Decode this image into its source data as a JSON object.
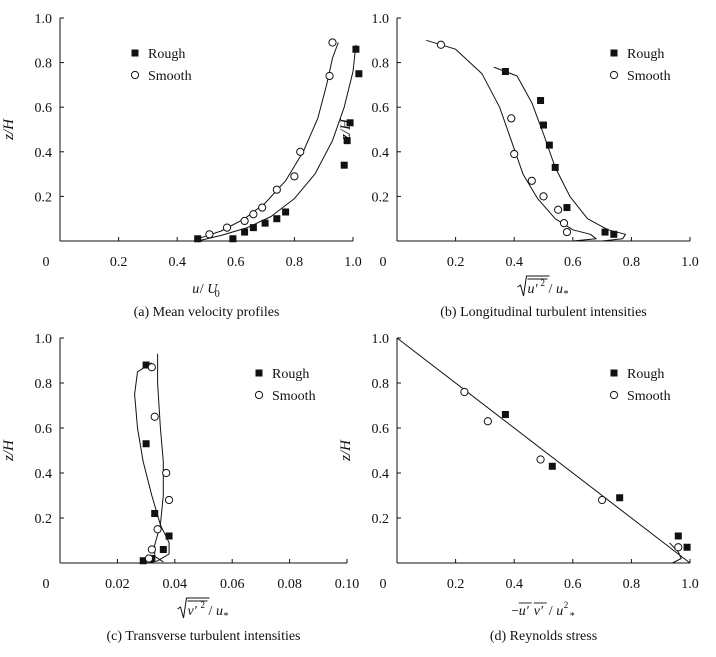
{
  "chart_data": [
    {
      "type": "scatter",
      "caption": "(a) Mean velocity profiles",
      "xlim": [
        0,
        1.0
      ],
      "ylim": [
        0,
        1.0
      ],
      "xticks": [
        {
          "v": 0,
          "t": "0"
        },
        {
          "v": 0.2,
          "t": "0.2"
        },
        {
          "v": 0.4,
          "t": "0.4"
        },
        {
          "v": 0.6,
          "t": "0.6"
        },
        {
          "v": 0.8,
          "t": "0.8"
        },
        {
          "v": 1.0,
          "t": "1.0"
        }
      ],
      "yticks": [
        {
          "v": 0.2,
          "t": "0.2"
        },
        {
          "v": 0.4,
          "t": "0.4"
        },
        {
          "v": 0.6,
          "t": "0.6"
        },
        {
          "v": 0.8,
          "t": "0.8"
        },
        {
          "v": 1.0,
          "t": "1.0"
        }
      ],
      "xlabel_parts": [
        {
          "text": "u",
          "italic": true
        },
        {
          "text": "/",
          "italic": false
        },
        {
          "text": "U",
          "italic": true
        },
        {
          "text": "0",
          "italic": false,
          "sub": true
        }
      ],
      "ylabel": "z/H",
      "legend": {
        "position": "top-left",
        "entries": [
          "Rough",
          "Smooth"
        ]
      },
      "series": [
        {
          "name": "Rough",
          "marker": "square",
          "points": [
            [
              0.47,
              0.01
            ],
            [
              0.59,
              0.01
            ],
            [
              0.63,
              0.04
            ],
            [
              0.66,
              0.06
            ],
            [
              0.7,
              0.08
            ],
            [
              0.74,
              0.1
            ],
            [
              0.77,
              0.13
            ],
            [
              0.97,
              0.34
            ],
            [
              0.98,
              0.45
            ],
            [
              0.99,
              0.53
            ],
            [
              1.01,
              0.86
            ],
            [
              1.02,
              0.75
            ]
          ]
        },
        {
          "name": "Smooth",
          "marker": "circle",
          "points": [
            [
              0.51,
              0.03
            ],
            [
              0.57,
              0.06
            ],
            [
              0.63,
              0.09
            ],
            [
              0.66,
              0.12
            ],
            [
              0.69,
              0.15
            ],
            [
              0.74,
              0.23
            ],
            [
              0.8,
              0.29
            ],
            [
              0.82,
              0.4
            ],
            [
              0.92,
              0.74
            ],
            [
              0.93,
              0.89
            ]
          ]
        }
      ],
      "curves": [
        [
          [
            0.47,
            0.0
          ],
          [
            0.55,
            0.025
          ],
          [
            0.64,
            0.06
          ],
          [
            0.72,
            0.11
          ],
          [
            0.8,
            0.19
          ],
          [
            0.87,
            0.3
          ],
          [
            0.93,
            0.45
          ],
          [
            0.97,
            0.6
          ],
          [
            1.0,
            0.76
          ],
          [
            1.01,
            0.88
          ]
        ],
        [
          [
            0.47,
            0.01
          ],
          [
            0.55,
            0.045
          ],
          [
            0.63,
            0.1
          ],
          [
            0.7,
            0.17
          ],
          [
            0.77,
            0.27
          ],
          [
            0.83,
            0.4
          ],
          [
            0.88,
            0.55
          ],
          [
            0.91,
            0.7
          ],
          [
            0.93,
            0.82
          ],
          [
            0.95,
            0.89
          ]
        ]
      ]
    },
    {
      "type": "scatter",
      "caption": "(b) Longitudinal turbulent intensities",
      "xlim": [
        0,
        1.0
      ],
      "ylim": [
        0,
        1.0
      ],
      "xticks": [
        {
          "v": 0,
          "t": "0"
        },
        {
          "v": 0.2,
          "t": "0.2"
        },
        {
          "v": 0.4,
          "t": "0.4"
        },
        {
          "v": 0.6,
          "t": "0.6"
        },
        {
          "v": 0.8,
          "t": "0.8"
        },
        {
          "v": 1.0,
          "t": "1.0"
        }
      ],
      "yticks": [
        {
          "v": 0.2,
          "t": "0.2"
        },
        {
          "v": 0.4,
          "t": "0.4"
        },
        {
          "v": 0.6,
          "t": "0.6"
        },
        {
          "v": 0.8,
          "t": "0.8"
        },
        {
          "v": 1.0,
          "t": "1.0"
        }
      ],
      "xlabel_parts": [
        {
          "text": "u′",
          "italic": true,
          "sqrt_bar": true,
          "sup": "2"
        },
        {
          "text": "/",
          "italic": false
        },
        {
          "text": "u",
          "italic": true
        },
        {
          "text": "*",
          "italic": false,
          "sub": true
        }
      ],
      "ylabel": "z/H",
      "legend": {
        "position": "top-right",
        "entries": [
          "Rough",
          "Smooth"
        ]
      },
      "series": [
        {
          "name": "Rough",
          "marker": "square",
          "points": [
            [
              0.37,
              0.76
            ],
            [
              0.49,
              0.63
            ],
            [
              0.5,
              0.52
            ],
            [
              0.52,
              0.43
            ],
            [
              0.54,
              0.33
            ],
            [
              0.58,
              0.15
            ],
            [
              0.71,
              0.04
            ],
            [
              0.74,
              0.03
            ]
          ]
        },
        {
          "name": "Smooth",
          "marker": "circle",
          "points": [
            [
              0.15,
              0.88
            ],
            [
              0.39,
              0.55
            ],
            [
              0.4,
              0.39
            ],
            [
              0.46,
              0.27
            ],
            [
              0.5,
              0.2
            ],
            [
              0.55,
              0.14
            ],
            [
              0.57,
              0.08
            ],
            [
              0.58,
              0.04
            ]
          ]
        }
      ],
      "curves": [
        [
          [
            0.1,
            0.9
          ],
          [
            0.2,
            0.86
          ],
          [
            0.29,
            0.75
          ],
          [
            0.35,
            0.6
          ],
          [
            0.39,
            0.45
          ],
          [
            0.43,
            0.3
          ],
          [
            0.48,
            0.19
          ],
          [
            0.54,
            0.1
          ],
          [
            0.6,
            0.05
          ],
          [
            0.66,
            0.03
          ],
          [
            0.68,
            0.01
          ],
          [
            0.6,
            0.0
          ]
        ],
        [
          [
            0.33,
            0.78
          ],
          [
            0.41,
            0.74
          ],
          [
            0.46,
            0.62
          ],
          [
            0.5,
            0.48
          ],
          [
            0.54,
            0.33
          ],
          [
            0.59,
            0.2
          ],
          [
            0.65,
            0.1
          ],
          [
            0.72,
            0.05
          ],
          [
            0.78,
            0.03
          ],
          [
            0.77,
            0.01
          ],
          [
            0.7,
            0.0
          ]
        ]
      ]
    },
    {
      "type": "scatter",
      "caption": "(c) Transverse turbulent intensities",
      "xlim": [
        0,
        0.1
      ],
      "ylim": [
        0,
        1.0
      ],
      "xticks": [
        {
          "v": 0,
          "t": "0"
        },
        {
          "v": 0.02,
          "t": "0.02"
        },
        {
          "v": 0.04,
          "t": "0.04"
        },
        {
          "v": 0.06,
          "t": "0.06"
        },
        {
          "v": 0.08,
          "t": "0.08"
        },
        {
          "v": 0.1,
          "t": "0.10"
        }
      ],
      "yticks": [
        {
          "v": 0.2,
          "t": "0.2"
        },
        {
          "v": 0.4,
          "t": "0.4"
        },
        {
          "v": 0.6,
          "t": "0.6"
        },
        {
          "v": 0.8,
          "t": "0.8"
        },
        {
          "v": 1.0,
          "t": "1.0"
        }
      ],
      "xlabel_parts": [
        {
          "text": "v′",
          "italic": true,
          "sqrt_bar": true,
          "sup": "2"
        },
        {
          "text": "/",
          "italic": false
        },
        {
          "text": "u",
          "italic": true
        },
        {
          "text": "*",
          "italic": false,
          "sub": true
        }
      ],
      "ylabel": "z/H",
      "legend": {
        "position": "top-right",
        "entries": [
          "Rough",
          "Smooth"
        ]
      },
      "series": [
        {
          "name": "Rough",
          "marker": "square",
          "points": [
            [
              0.03,
              0.88
            ],
            [
              0.03,
              0.53
            ],
            [
              0.033,
              0.22
            ],
            [
              0.038,
              0.12
            ],
            [
              0.036,
              0.06
            ],
            [
              0.032,
              0.02
            ],
            [
              0.029,
              0.01
            ]
          ]
        },
        {
          "name": "Smooth",
          "marker": "circle",
          "points": [
            [
              0.032,
              0.87
            ],
            [
              0.033,
              0.65
            ],
            [
              0.037,
              0.4
            ],
            [
              0.038,
              0.28
            ],
            [
              0.034,
              0.15
            ],
            [
              0.032,
              0.06
            ],
            [
              0.031,
              0.02
            ]
          ]
        }
      ],
      "curves": [
        [
          [
            0.032,
            0.89
          ],
          [
            0.027,
            0.85
          ],
          [
            0.026,
            0.75
          ],
          [
            0.027,
            0.6
          ],
          [
            0.029,
            0.45
          ],
          [
            0.032,
            0.3
          ],
          [
            0.035,
            0.17
          ],
          [
            0.038,
            0.09
          ],
          [
            0.038,
            0.04
          ],
          [
            0.034,
            0.01
          ],
          [
            0.031,
            0.0
          ]
        ],
        [
          [
            0.034,
            0.93
          ],
          [
            0.034,
            0.8
          ],
          [
            0.035,
            0.6
          ],
          [
            0.036,
            0.45
          ],
          [
            0.036,
            0.3
          ],
          [
            0.035,
            0.17
          ],
          [
            0.033,
            0.08
          ],
          [
            0.033,
            0.03
          ],
          [
            0.036,
            0.005
          ]
        ]
      ]
    },
    {
      "type": "scatter",
      "caption": "(d) Reynolds stress",
      "xlim": [
        0,
        1.0
      ],
      "ylim": [
        0,
        1.0
      ],
      "xticks": [
        {
          "v": 0,
          "t": "0"
        },
        {
          "v": 0.2,
          "t": "0.2"
        },
        {
          "v": 0.4,
          "t": "0.4"
        },
        {
          "v": 0.6,
          "t": "0.6"
        },
        {
          "v": 0.8,
          "t": "0.8"
        },
        {
          "v": 1.0,
          "t": "1.0"
        }
      ],
      "yticks": [
        {
          "v": 0.2,
          "t": "0.2"
        },
        {
          "v": 0.4,
          "t": "0.4"
        },
        {
          "v": 0.6,
          "t": "0.6"
        },
        {
          "v": 0.8,
          "t": "0.8"
        },
        {
          "v": 1.0,
          "t": "1.0"
        }
      ],
      "xlabel_parts": [
        {
          "text": "−",
          "italic": false
        },
        {
          "text": "u′",
          "italic": true,
          "overline": true
        },
        {
          "text": "v′",
          "italic": true,
          "overline": true
        },
        {
          "text": "/",
          "italic": false
        },
        {
          "text": "u",
          "italic": true,
          "sup": "2"
        },
        {
          "text": "*",
          "italic": false,
          "sub": true
        }
      ],
      "ylabel": "z/H",
      "legend": {
        "position": "top-right",
        "entries": [
          "Rough",
          "Smooth"
        ]
      },
      "series": [
        {
          "name": "Rough",
          "marker": "square",
          "points": [
            [
              0.37,
              0.66
            ],
            [
              0.53,
              0.43
            ],
            [
              0.76,
              0.29
            ],
            [
              0.96,
              0.12
            ],
            [
              0.99,
              0.07
            ]
          ]
        },
        {
          "name": "Smooth",
          "marker": "circle",
          "points": [
            [
              0.23,
              0.76
            ],
            [
              0.31,
              0.63
            ],
            [
              0.49,
              0.46
            ],
            [
              0.7,
              0.28
            ],
            [
              0.96,
              0.07
            ]
          ]
        }
      ],
      "curves": [
        [
          [
            0.0,
            1.0
          ],
          [
            1.0,
            0.0
          ]
        ],
        [
          [
            0.93,
            0.09
          ],
          [
            0.96,
            0.05
          ],
          [
            0.97,
            0.02
          ],
          [
            0.94,
            0.0
          ],
          [
            0.9,
            0.0
          ]
        ]
      ]
    }
  ]
}
